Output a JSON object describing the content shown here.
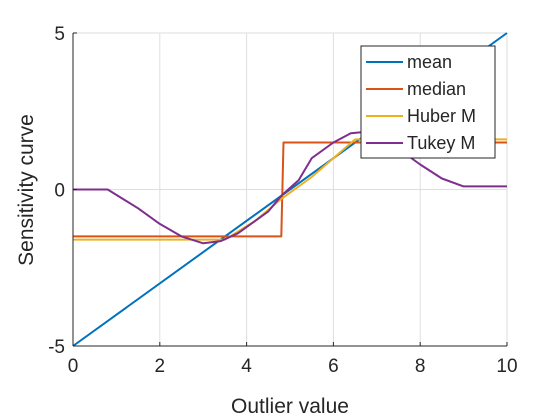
{
  "chart_data": {
    "type": "line",
    "title": "",
    "xlabel": "Outlier value",
    "ylabel": "Sensitivity curve",
    "xlim": [
      0,
      10
    ],
    "ylim": [
      -5,
      5
    ],
    "xticks": [
      0,
      2,
      4,
      6,
      8,
      10
    ],
    "xtick_labels": [
      "0",
      "2",
      "4",
      "6",
      "8",
      "10"
    ],
    "yticks": [
      -5,
      0,
      5
    ],
    "ytick_labels": [
      "-5",
      "0",
      "5"
    ],
    "grid": true,
    "legend_position": "top-right",
    "series": [
      {
        "name": "mean",
        "color": "#0072BD",
        "points": [
          [
            0,
            -5
          ],
          [
            10,
            5
          ]
        ]
      },
      {
        "name": "median",
        "color": "#D95319",
        "points": [
          [
            0,
            -1.5
          ],
          [
            4.8,
            -1.5
          ],
          [
            4.85,
            1.5
          ],
          [
            10,
            1.5
          ]
        ]
      },
      {
        "name": "Huber M",
        "color": "#EDB120",
        "points": [
          [
            0,
            -1.6
          ],
          [
            3.5,
            -1.6
          ],
          [
            4.2,
            -1.0
          ],
          [
            4.8,
            -0.3
          ],
          [
            5.5,
            0.4
          ],
          [
            6.5,
            1.6
          ],
          [
            10,
            1.6
          ]
        ]
      },
      {
        "name": "Tukey M",
        "color": "#7E2F8E",
        "points": [
          [
            0,
            0
          ],
          [
            0.8,
            0
          ],
          [
            1.5,
            -0.6
          ],
          [
            2.0,
            -1.1
          ],
          [
            2.5,
            -1.5
          ],
          [
            3.0,
            -1.72
          ],
          [
            3.4,
            -1.65
          ],
          [
            3.8,
            -1.4
          ],
          [
            4.2,
            -1.0
          ],
          [
            4.5,
            -0.7
          ],
          [
            4.8,
            -0.2
          ],
          [
            5.2,
            0.3
          ],
          [
            5.5,
            1.0
          ],
          [
            6.0,
            1.5
          ],
          [
            6.4,
            1.8
          ],
          [
            6.8,
            1.85
          ],
          [
            7.2,
            1.6
          ],
          [
            7.6,
            1.2
          ],
          [
            8.0,
            0.8
          ],
          [
            8.5,
            0.35
          ],
          [
            9.0,
            0.1
          ],
          [
            10,
            0.1
          ]
        ]
      }
    ]
  }
}
